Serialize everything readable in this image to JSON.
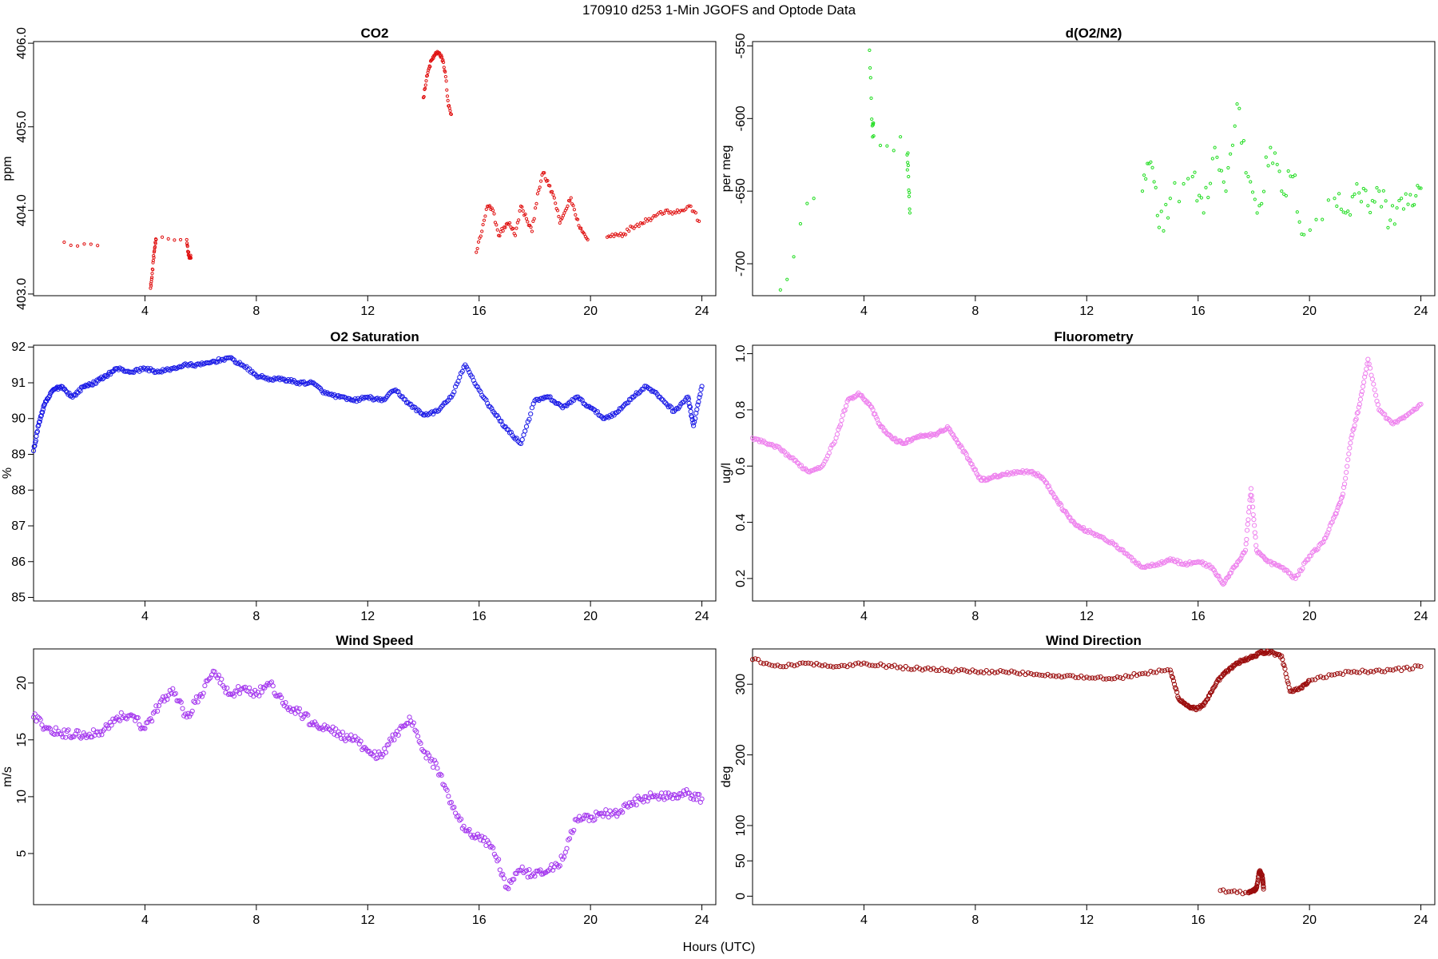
{
  "figure": {
    "title": "170910   d253   1-Min  JGOFS and Optode Data",
    "xlabel": "Hours (UTC)"
  },
  "chart_data": [
    {
      "id": "co2",
      "type": "scatter",
      "title": "CO2",
      "ylabel": "ppm",
      "xlim": [
        0,
        24.5
      ],
      "ylim": [
        402.98,
        406.02
      ],
      "xticks": [
        4,
        8,
        12,
        16,
        20,
        24
      ],
      "yticks": [
        403.0,
        404.0,
        405.0,
        406.0
      ],
      "ytick_labels": [
        "403.0",
        "404.0",
        "405.0",
        "406.0"
      ],
      "ytick_rotated": true,
      "marker_size": 1.6,
      "color": "#e01010",
      "series": [
        {
          "x": [
            1.1,
            2.3,
            4.2,
            4.25,
            4.3,
            4.35,
            4.4,
            5.5,
            5.55,
            5.6,
            5.65
          ],
          "y": [
            403.62,
            403.58,
            403.07,
            403.2,
            403.4,
            403.55,
            403.65,
            403.65,
            403.5,
            403.45,
            403.43
          ]
        },
        {
          "x": [
            14.0,
            14.1,
            14.2,
            14.3,
            14.4,
            14.5,
            14.6,
            14.7,
            14.8,
            14.9,
            15.0
          ],
          "y": [
            405.35,
            405.55,
            405.7,
            405.8,
            405.85,
            405.9,
            405.85,
            405.8,
            405.6,
            405.25,
            405.15
          ]
        },
        {
          "x": [
            15.9,
            16.1,
            16.3,
            16.5,
            16.7,
            16.9,
            17.1,
            17.3,
            17.5,
            17.7,
            17.9,
            18.1,
            18.3,
            18.5,
            18.7,
            18.9,
            19.1,
            19.3,
            19.5,
            19.7,
            19.9
          ],
          "y": [
            403.5,
            403.75,
            404.05,
            404.0,
            403.7,
            403.8,
            403.85,
            403.7,
            404.05,
            403.9,
            403.75,
            404.2,
            404.45,
            404.3,
            404.15,
            403.85,
            404.0,
            404.15,
            403.9,
            403.75,
            403.65
          ]
        },
        {
          "x": [
            20.6,
            20.9,
            21.2,
            21.5,
            21.8,
            22.1,
            22.4,
            22.7,
            23.0,
            23.3,
            23.6,
            23.9
          ],
          "y": [
            403.68,
            403.72,
            403.72,
            403.8,
            403.85,
            403.9,
            403.95,
            404.0,
            403.98,
            404.0,
            404.05,
            403.87
          ]
        }
      ]
    },
    {
      "id": "do2n2",
      "type": "scatter",
      "title": "d(O2/N2)",
      "ylabel": "per meg",
      "xlim": [
        0,
        24.5
      ],
      "ylim": [
        -722,
        -547
      ],
      "xticks": [
        4,
        8,
        12,
        16,
        20,
        24
      ],
      "yticks": [
        -700,
        -650,
        -600,
        -550
      ],
      "ytick_labels": [
        "-700",
        "-650",
        "-600",
        "-550"
      ],
      "ytick_rotated": true,
      "marker_size": 1.6,
      "color": "#22dd22",
      "series": [
        {
          "x": [
            1.0,
            2.2,
            4.2,
            4.3,
            4.35,
            5.55,
            5.6,
            5.65
          ],
          "y": [
            -718,
            -655,
            -553,
            -605,
            -612,
            -625,
            -640,
            -665
          ]
        },
        {
          "x": [
            14.0,
            14.3,
            14.6,
            15.0,
            15.8,
            16.2,
            16.6,
            17.0,
            17.4,
            17.8,
            18.2,
            18.6,
            19.0,
            19.4,
            19.8,
            20.9,
            21.3,
            21.7,
            22.1,
            22.5,
            22.9,
            23.3,
            23.7,
            24.0
          ],
          "y": [
            -650,
            -630,
            -675,
            -655,
            -640,
            -665,
            -620,
            -650,
            -590,
            -640,
            -660,
            -620,
            -650,
            -640,
            -680,
            -655,
            -665,
            -645,
            -660,
            -650,
            -670,
            -655,
            -660,
            -648
          ]
        }
      ]
    },
    {
      "id": "o2sat",
      "type": "scatter",
      "title": "O2 Saturation",
      "ylabel": "%",
      "xlim": [
        0,
        24.5
      ],
      "ylim": [
        84.9,
        92.05
      ],
      "xticks": [
        4,
        8,
        12,
        16,
        20,
        24
      ],
      "yticks": [
        85,
        86,
        87,
        88,
        89,
        90,
        91,
        92
      ],
      "ytick_labels": [
        "85",
        "86",
        "87",
        "88",
        "89",
        "90",
        "91",
        "92"
      ],
      "ytick_rotated": false,
      "marker_size": 2.6,
      "color": "#1a1ae6",
      "series": [
        {
          "x": [
            0.0,
            0.2,
            0.4,
            0.7,
            1.0,
            1.4,
            1.8,
            2.2,
            2.6,
            3.0,
            3.5,
            4.0,
            4.5,
            5.0,
            5.5,
            6.0,
            6.5,
            7.0,
            7.5,
            8.0,
            8.5,
            9.0,
            9.5,
            10.0,
            10.5,
            11.0,
            11.5,
            12.0,
            12.5,
            13.0,
            13.5,
            14.0,
            14.5,
            15.0,
            15.5,
            16.0,
            16.5,
            17.0,
            17.5,
            18.0,
            18.5,
            19.0,
            19.5,
            20.0,
            20.5,
            21.0,
            21.5,
            22.0,
            22.5,
            23.0,
            23.5,
            23.7,
            24.0
          ],
          "y": [
            89.1,
            89.9,
            90.4,
            90.8,
            90.9,
            90.6,
            90.9,
            91.0,
            91.2,
            91.4,
            91.3,
            91.4,
            91.3,
            91.4,
            91.5,
            91.5,
            91.6,
            91.7,
            91.5,
            91.2,
            91.1,
            91.1,
            91.0,
            91.0,
            90.7,
            90.6,
            90.5,
            90.6,
            90.5,
            90.8,
            90.4,
            90.1,
            90.2,
            90.6,
            91.5,
            90.8,
            90.2,
            89.7,
            89.3,
            90.5,
            90.6,
            90.3,
            90.6,
            90.3,
            90.0,
            90.2,
            90.6,
            90.9,
            90.6,
            90.2,
            90.6,
            89.8,
            90.9
          ]
        }
      ]
    },
    {
      "id": "fluor",
      "type": "scatter",
      "title": "Fluorometry",
      "ylabel": "ug/l",
      "xlim": [
        0,
        24.5
      ],
      "ylim": [
        0.12,
        1.03
      ],
      "xticks": [
        4,
        8,
        12,
        16,
        20,
        24
      ],
      "yticks": [
        0.2,
        0.4,
        0.6,
        0.8,
        1.0
      ],
      "ytick_labels": [
        "0.2",
        "0.4",
        "0.6",
        "0.8",
        "1.0"
      ],
      "ytick_rotated": true,
      "marker_size": 2.6,
      "color": "#ee82ee",
      "series": [
        {
          "x": [
            0.0,
            0.5,
            1.0,
            1.5,
            2.0,
            2.5,
            3.0,
            3.4,
            3.8,
            4.2,
            4.6,
            5.0,
            5.4,
            5.8,
            6.2,
            6.6,
            7.0,
            7.4,
            7.8,
            8.2,
            8.6,
            9.0,
            9.5,
            10.0,
            10.4,
            10.8,
            11.2,
            11.6,
            12.0,
            12.5,
            13.0,
            13.5,
            14.0,
            14.5,
            15.0,
            15.5,
            16.0,
            16.5,
            16.9,
            17.3,
            17.7,
            17.9,
            18.1,
            18.5,
            19.0,
            19.5,
            20.0,
            20.5,
            20.9,
            21.2,
            21.5,
            21.8,
            22.1,
            22.5,
            23.0,
            23.5,
            24.0
          ],
          "y": [
            0.7,
            0.68,
            0.66,
            0.62,
            0.58,
            0.6,
            0.7,
            0.83,
            0.86,
            0.82,
            0.74,
            0.7,
            0.68,
            0.7,
            0.71,
            0.71,
            0.74,
            0.68,
            0.62,
            0.55,
            0.56,
            0.57,
            0.58,
            0.58,
            0.56,
            0.5,
            0.44,
            0.39,
            0.37,
            0.35,
            0.32,
            0.28,
            0.24,
            0.25,
            0.27,
            0.25,
            0.26,
            0.24,
            0.18,
            0.24,
            0.3,
            0.52,
            0.3,
            0.26,
            0.24,
            0.2,
            0.28,
            0.33,
            0.42,
            0.5,
            0.7,
            0.82,
            0.98,
            0.8,
            0.75,
            0.78,
            0.82
          ]
        }
      ]
    },
    {
      "id": "wspd",
      "type": "scatter",
      "title": "Wind Speed",
      "ylabel": "m/s",
      "xlim": [
        0,
        24.5
      ],
      "ylim": [
        0.5,
        23
      ],
      "xticks": [
        4,
        8,
        12,
        16,
        20,
        24
      ],
      "yticks": [
        5,
        10,
        15,
        20
      ],
      "ytick_labels": [
        "5",
        "10",
        "15",
        "20"
      ],
      "ytick_rotated": true,
      "marker_size": 2.6,
      "color": "#a335ee",
      "series": [
        {
          "x": [
            0.0,
            0.5,
            1.0,
            1.5,
            2.0,
            2.5,
            3.0,
            3.5,
            4.0,
            4.5,
            5.0,
            5.5,
            6.0,
            6.5,
            7.0,
            7.5,
            8.0,
            8.5,
            9.0,
            9.5,
            10.0,
            10.5,
            11.0,
            11.5,
            12.0,
            12.5,
            13.0,
            13.5,
            14.0,
            14.5,
            15.0,
            15.5,
            16.0,
            16.5,
            17.0,
            17.5,
            18.0,
            18.5,
            19.0,
            19.5,
            20.0,
            20.5,
            21.0,
            21.5,
            22.0,
            22.5,
            23.0,
            23.5,
            24.0
          ],
          "y": [
            17.0,
            16.0,
            15.5,
            15.5,
            15.5,
            15.8,
            17.0,
            17.2,
            16.0,
            18.0,
            19.5,
            17.0,
            19.0,
            21.0,
            19.0,
            19.5,
            19.0,
            20.0,
            18.0,
            17.5,
            16.5,
            16.0,
            15.5,
            15.0,
            14.0,
            13.5,
            15.5,
            17.0,
            14.0,
            12.5,
            9.5,
            7.0,
            6.5,
            5.5,
            2.0,
            3.5,
            3.0,
            3.5,
            4.5,
            8.0,
            8.2,
            8.5,
            8.5,
            9.5,
            10.0,
            10.0,
            10.2,
            10.3,
            9.8
          ]
        }
      ]
    },
    {
      "id": "wdir",
      "type": "scatter",
      "title": "Wind Direction",
      "ylabel": "deg",
      "xlim": [
        0,
        24.5
      ],
      "ylim": [
        -12,
        350
      ],
      "xticks": [
        4,
        8,
        12,
        16,
        20,
        24
      ],
      "yticks": [
        0,
        50,
        100,
        200,
        300
      ],
      "ytick_labels": [
        "0",
        "50",
        "100",
        "200",
        "300"
      ],
      "ytick_rotated": true,
      "marker_size": 2.6,
      "color": "#9b0d0d",
      "series": [
        {
          "x": [
            0.0,
            1.0,
            2.0,
            3.0,
            4.0,
            5.0,
            6.0,
            7.0,
            8.0,
            9.0,
            10.0,
            11.0,
            12.0,
            13.0,
            14.0,
            15.0,
            15.3,
            15.6,
            15.9,
            16.2,
            16.5,
            16.8,
            17.1,
            17.4,
            17.7,
            18.0,
            18.3,
            18.6,
            19.0,
            19.3,
            19.7,
            20.0,
            21.0,
            22.0,
            23.0,
            24.0
          ],
          "y": [
            335,
            325,
            330,
            325,
            330,
            325,
            322,
            320,
            318,
            318,
            315,
            312,
            310,
            308,
            315,
            320,
            280,
            270,
            265,
            270,
            290,
            310,
            320,
            330,
            335,
            340,
            345,
            345,
            340,
            290,
            295,
            305,
            315,
            318,
            320,
            325
          ]
        },
        {
          "x": [
            16.8,
            17.8,
            18.0,
            18.1,
            18.2,
            18.3,
            18.35
          ],
          "y": [
            8,
            5,
            8,
            12,
            35,
            30,
            10
          ]
        }
      ]
    }
  ]
}
